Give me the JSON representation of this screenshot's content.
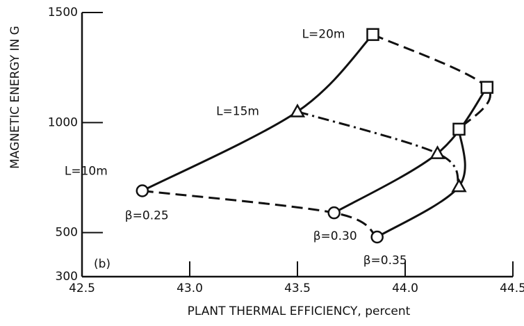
{
  "chart_data": {
    "type": "line",
    "xlabel": "PLANT THERMAL EFFICIENCY, percent",
    "ylabel": "MAGNETIC ENERGY IN G",
    "annotation": "(b)",
    "xlim": [
      42.5,
      44.5
    ],
    "xticks": [
      42.5,
      {
        "value": 43,
        "label": "43.0"
      },
      43.5,
      {
        "value": 44,
        "label": "44.0"
      },
      44.5
    ],
    "ylim": [
      300,
      1500
    ],
    "yticks": [
      300,
      500,
      1000,
      1500
    ],
    "grid": false,
    "color": "#111111",
    "series": [
      {
        "name": "β=0.25",
        "style": "solid",
        "x": [
          42.78,
          43.5,
          43.85
        ],
        "values": [
          690,
          1050,
          1400
        ]
      },
      {
        "name": "β=0.30",
        "style": "solid",
        "x": [
          43.67,
          44.15,
          44.38
        ],
        "values": [
          590,
          860,
          1160
        ]
      },
      {
        "name": "β=0.35",
        "style": "solid",
        "x": [
          43.87,
          44.25,
          44.25
        ],
        "values": [
          480,
          710,
          970
        ]
      },
      {
        "name": "L=10m",
        "style": "dashed",
        "marker": "circle",
        "x": [
          42.78,
          43.67,
          43.87
        ],
        "values": [
          690,
          590,
          480
        ]
      },
      {
        "name": "L=15m",
        "style": "dashdot",
        "marker": "triangle",
        "x": [
          43.5,
          44.15,
          44.25
        ],
        "values": [
          1050,
          860,
          710
        ]
      },
      {
        "name": "L=20m",
        "style": "dashed",
        "marker": "square",
        "x": [
          43.85,
          44.38,
          44.25
        ],
        "values": [
          1400,
          1160,
          970
        ]
      }
    ]
  }
}
